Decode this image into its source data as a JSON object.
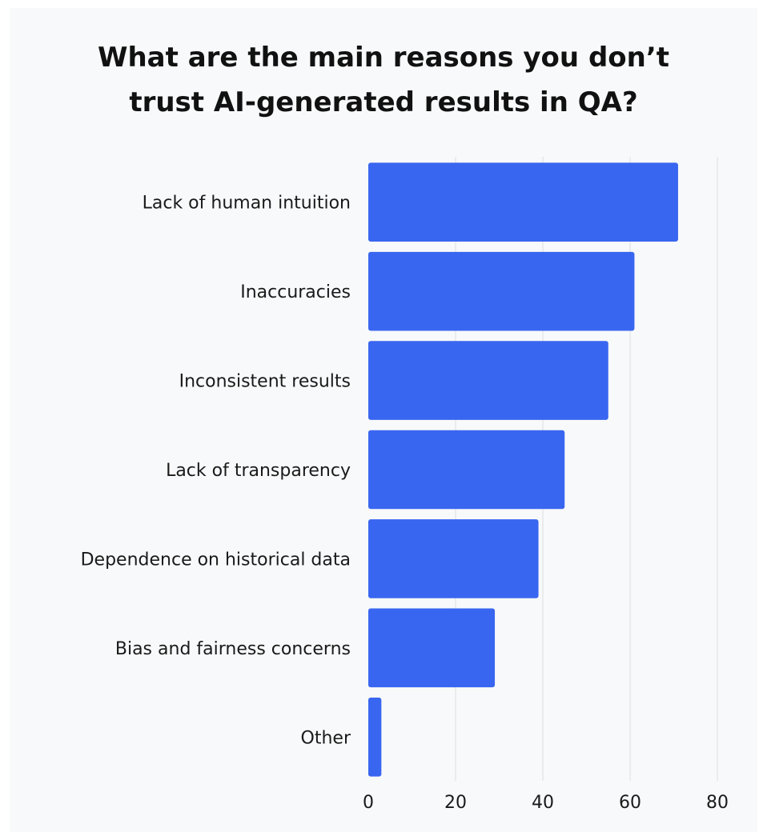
{
  "chart_data": {
    "type": "bar",
    "orientation": "horizontal",
    "title": "What are the main reasons you don’t trust AI-generated results in QA?",
    "title_lines": [
      "What are the main reasons you don’t",
      "trust AI-generated results in QA?"
    ],
    "categories": [
      "Lack of human intuition",
      "Inaccuracies",
      "Inconsistent results",
      "Lack of transparency",
      "Dependence on historical data",
      "Bias and fairness concerns",
      "Other"
    ],
    "values": [
      71,
      61,
      55,
      45,
      39,
      29,
      3
    ],
    "xlim": [
      0,
      80
    ],
    "xticks": [
      0,
      20,
      40,
      60,
      80
    ],
    "xlabel": "",
    "ylabel": "",
    "grid": "vertical",
    "bar_color": "#3966f0",
    "grid_color": "#dddddd"
  }
}
